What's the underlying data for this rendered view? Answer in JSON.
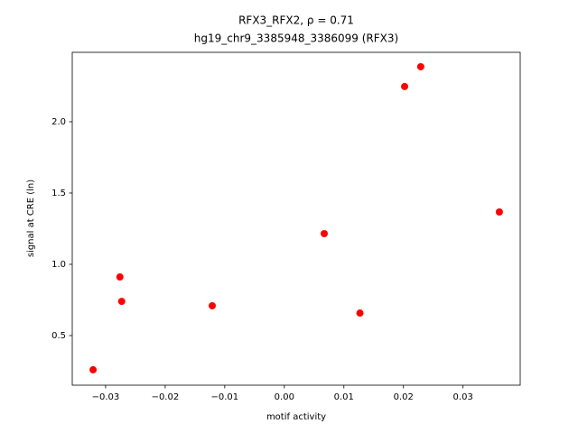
{
  "chart_data": {
    "type": "scatter",
    "title": "RFX3_RFX2, ρ = 0.71",
    "subtitle": "hg19_chr9_3385948_3386099 (RFX3)",
    "x_label": "motif activity",
    "y_label": "signal at CRE (ln)",
    "color": "#ff0000",
    "x": [
      -0.0321,
      -0.0276,
      -0.0273,
      -0.0121,
      0.0067,
      0.0127,
      0.0202,
      0.0229,
      0.0361
    ],
    "values": [
      0.26,
      0.911,
      0.74,
      0.709,
      1.215,
      0.658,
      2.247,
      2.386,
      1.367
    ],
    "xlim": [
      -0.0356,
      0.0396
    ],
    "ylim": [
      0.152,
      2.487
    ],
    "xticks": [
      {
        "value": -0.03,
        "label": "−0.03"
      },
      {
        "value": -0.02,
        "label": "−0.02"
      },
      {
        "value": -0.01,
        "label": "−0.01"
      },
      {
        "value": 0,
        "label": "0.00"
      },
      0.01,
      0.02,
      0.03
    ],
    "yticks": [
      0.5,
      {
        "value": 1,
        "label": "1.0"
      },
      1.5,
      {
        "value": 2,
        "label": "2.0"
      }
    ],
    "grid": false
  }
}
